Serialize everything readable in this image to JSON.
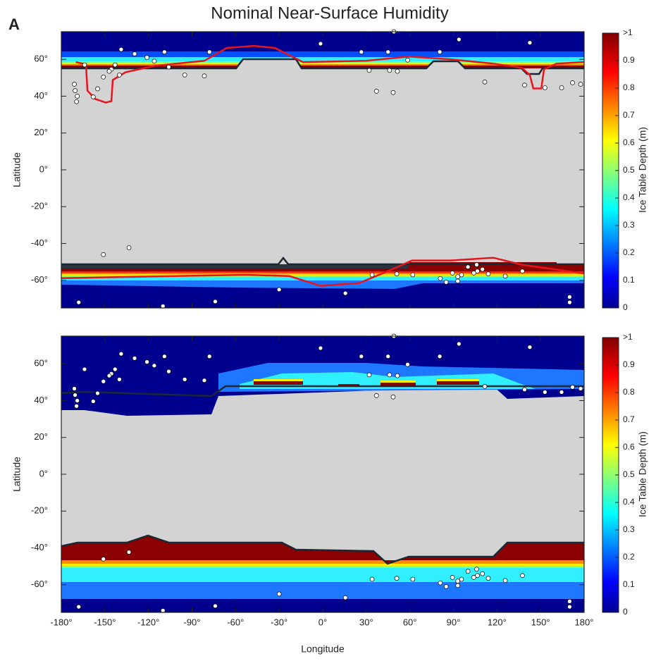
{
  "chart_data": [
    {
      "type": "contour",
      "title": "Nominal Near-Surface Humidity",
      "panel_label": "A",
      "xlim": [
        -180,
        180
      ],
      "ylim": [
        -75,
        75
      ],
      "xticks": [
        -180,
        -150,
        -120,
        -90,
        -60,
        -30,
        0,
        30,
        60,
        90,
        120,
        150,
        180
      ],
      "yticks": [
        {
          "value": -60,
          "label": "-60°"
        },
        {
          "value": -40,
          "label": "-40°"
        },
        {
          "value": -20,
          "label": "-20°"
        },
        {
          "value": 0,
          "label": "0°"
        },
        {
          "value": 20,
          "label": "20°"
        },
        {
          "value": 40,
          "label": "40°"
        },
        {
          "value": 60,
          "label": "60°"
        }
      ],
      "ylabel": "Latitude",
      "colorbar": {
        "label": "Ice Table Depth (m)",
        "lim": [
          0,
          1
        ],
        "ticks": [
          0,
          0.1,
          0.2,
          0.3,
          0.4,
          0.5,
          0.6,
          0.7,
          0.8,
          0.9,
          {
            "value": 1,
            "label": ">1"
          }
        ]
      },
      "contour_line": {
        "color": "#e8141c",
        "x": [
          -170,
          -163,
          -162,
          -156.7,
          -149.4,
          -145.5,
          -144.6,
          -135.8,
          -115.5,
          -81.5,
          -66,
          -47.5,
          -33,
          -13.6,
          30,
          59.2,
          88.2,
          117.4,
          137,
          142.6,
          145,
          150.5,
          152.4,
          161,
          180,
          null,
          -180,
          -125,
          -52.5,
          -23,
          -1.5,
          25.2,
          45,
          61.5,
          88.2,
          117.4,
          137,
          161,
          180
        ],
        "y": [
          58.5,
          57.3,
          43,
          38.5,
          36.5,
          37.3,
          48.8,
          53,
          56.5,
          59.2,
          66.2,
          67.3,
          66.2,
          58.5,
          59.2,
          61.5,
          60,
          57.7,
          55.4,
          51.5,
          44.2,
          44.2,
          54.6,
          57.7,
          58.5,
          null,
          -58.8,
          -58,
          -57,
          -57.7,
          -63,
          -61.5,
          -55,
          -49.2,
          -49.2,
          -47.7,
          -51.5,
          -54.2,
          -56.2
        ]
      }
    },
    {
      "type": "contour",
      "xlim": [
        -180,
        180
      ],
      "ylim": [
        -75,
        75
      ],
      "xticks": [
        {
          "value": -180,
          "label": "-180°"
        },
        {
          "value": -150,
          "label": "-150°"
        },
        {
          "value": -120,
          "label": "-120°"
        },
        {
          "value": -90,
          "label": "-90°"
        },
        {
          "value": -60,
          "label": "-60°"
        },
        {
          "value": -30,
          "label": "-30°"
        },
        {
          "value": 0,
          "label": "0°"
        },
        {
          "value": 30,
          "label": "30°"
        },
        {
          "value": 60,
          "label": "60°"
        },
        {
          "value": 90,
          "label": "90°"
        },
        {
          "value": 120,
          "label": "120°"
        },
        {
          "value": 150,
          "label": "150°"
        },
        {
          "value": 180,
          "label": "180°"
        }
      ],
      "yticks": [
        {
          "value": -60,
          "label": "-60°"
        },
        {
          "value": -40,
          "label": "-40°"
        },
        {
          "value": -20,
          "label": "-20°"
        },
        {
          "value": 0,
          "label": "0°"
        },
        {
          "value": 20,
          "label": "20°"
        },
        {
          "value": 40,
          "label": "40°"
        },
        {
          "value": 60,
          "label": "60°"
        }
      ],
      "xlabel": "Longitude",
      "ylabel": "Latitude",
      "colorbar": {
        "label": "Ice Table Depth (m)",
        "lim": [
          0,
          1
        ],
        "ticks": [
          0,
          0.1,
          0.2,
          0.3,
          0.4,
          0.5,
          0.6,
          0.7,
          0.8,
          0.9,
          {
            "value": 1,
            "label": ">1"
          }
        ]
      }
    }
  ],
  "sites": {
    "color": "#ffffff",
    "x": [
      -138.8,
      -129.5,
      -121,
      -116,
      -109,
      -78,
      -164,
      -143,
      -145.5,
      -147,
      -140,
      -151,
      -106,
      -95,
      -81.5,
      -171,
      -170.5,
      -169,
      -169.5,
      -155,
      -158,
      -133.4,
      -151,
      -168,
      -110,
      -74,
      -30,
      -1.5,
      26.6,
      49,
      45,
      80.6,
      93.8,
      142.6,
      58.5,
      32,
      46,
      51.4,
      37,
      48.5,
      111.6,
      139,
      153,
      164.5,
      172,
      177.6,
      15.6,
      170,
      170,
      34,
      51,
      62,
      81,
      85,
      89.3,
      93,
      93,
      95.6,
      100,
      106,
      106.5,
      110,
      114,
      125.7,
      137.5,
      104
    ],
    "y": [
      65.4,
      63,
      61,
      59,
      64,
      64,
      57,
      57,
      54.6,
      53.5,
      51.5,
      50.4,
      55.8,
      51.5,
      51,
      46.5,
      43,
      40,
      37,
      44,
      39.6,
      -42.3,
      -46,
      -72,
      -74,
      -71.5,
      -65,
      68.5,
      64,
      75,
      64,
      64,
      70.8,
      69,
      59.6,
      54,
      54,
      53.5,
      42.7,
      42,
      47.7,
      46,
      44.6,
      44.6,
      47.3,
      46.5,
      -67,
      -69,
      -72,
      -57,
      -56.5,
      -57,
      -59,
      -61,
      -56,
      -58,
      -60.4,
      -57,
      -52.7,
      -51.5,
      -55,
      -54,
      -56.5,
      -57.7,
      -55,
      -56
    ]
  }
}
